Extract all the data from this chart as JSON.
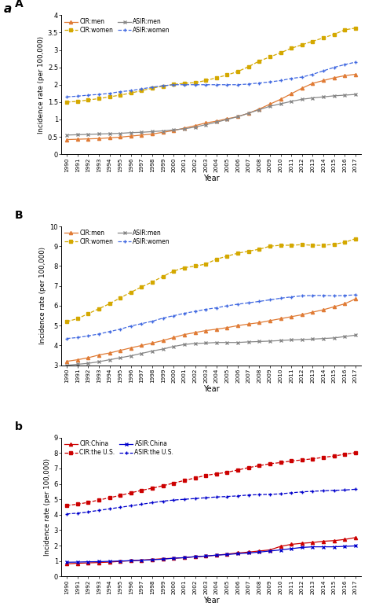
{
  "years": [
    1990,
    1991,
    1992,
    1993,
    1994,
    1995,
    1996,
    1997,
    1998,
    1999,
    2000,
    2001,
    2002,
    2003,
    2004,
    2005,
    2006,
    2007,
    2008,
    2009,
    2010,
    2011,
    2012,
    2013,
    2014,
    2015,
    2016,
    2017
  ],
  "panelA": {
    "title": "A",
    "CIR_men": [
      0.42,
      0.43,
      0.44,
      0.45,
      0.47,
      0.49,
      0.52,
      0.55,
      0.58,
      0.63,
      0.68,
      0.75,
      0.82,
      0.9,
      0.95,
      1.02,
      1.08,
      1.18,
      1.3,
      1.44,
      1.58,
      1.74,
      1.9,
      2.04,
      2.12,
      2.2,
      2.26,
      2.3
    ],
    "CIR_women": [
      1.5,
      1.52,
      1.56,
      1.6,
      1.65,
      1.7,
      1.76,
      1.83,
      1.9,
      1.96,
      2.01,
      2.04,
      2.06,
      2.12,
      2.2,
      2.28,
      2.38,
      2.52,
      2.68,
      2.8,
      2.92,
      3.05,
      3.15,
      3.25,
      3.35,
      3.45,
      3.58,
      3.63
    ],
    "ASIR_men": [
      0.55,
      0.56,
      0.57,
      0.58,
      0.59,
      0.6,
      0.62,
      0.63,
      0.65,
      0.67,
      0.7,
      0.73,
      0.78,
      0.85,
      0.92,
      1.0,
      1.08,
      1.18,
      1.28,
      1.38,
      1.45,
      1.52,
      1.58,
      1.62,
      1.65,
      1.68,
      1.7,
      1.72
    ],
    "ASIR_women": [
      1.65,
      1.67,
      1.7,
      1.72,
      1.75,
      1.8,
      1.83,
      1.88,
      1.93,
      1.97,
      2.0,
      2.0,
      2.0,
      2.0,
      2.0,
      2.0,
      2.0,
      2.02,
      2.05,
      2.08,
      2.12,
      2.18,
      2.22,
      2.3,
      2.4,
      2.5,
      2.58,
      2.65
    ],
    "ylim": [
      0,
      4
    ],
    "yticks": [
      0,
      0.5,
      1.0,
      1.5,
      2.0,
      2.5,
      3.0,
      3.5,
      4.0
    ],
    "ytick_labels": [
      "0",
      "0.5",
      "1",
      "1.5",
      "2",
      "2.5",
      "3",
      "3.5",
      "4"
    ]
  },
  "panelB": {
    "title": "B",
    "CIR_men": [
      3.2,
      3.28,
      3.38,
      3.52,
      3.62,
      3.75,
      3.88,
      4.0,
      4.12,
      4.25,
      4.4,
      4.55,
      4.65,
      4.75,
      4.82,
      4.9,
      5.0,
      5.08,
      5.15,
      5.25,
      5.35,
      5.45,
      5.55,
      5.68,
      5.8,
      5.95,
      6.1,
      6.35
    ],
    "CIR_women": [
      5.2,
      5.35,
      5.6,
      5.85,
      6.1,
      6.4,
      6.68,
      6.95,
      7.2,
      7.48,
      7.75,
      7.92,
      8.0,
      8.1,
      8.35,
      8.5,
      8.65,
      8.75,
      8.85,
      9.0,
      9.05,
      9.05,
      9.08,
      9.05,
      9.05,
      9.1,
      9.2,
      9.38
    ],
    "ASIR_men": [
      3.0,
      3.05,
      3.1,
      3.18,
      3.28,
      3.38,
      3.48,
      3.6,
      3.72,
      3.82,
      3.95,
      4.05,
      4.1,
      4.12,
      4.15,
      4.15,
      4.15,
      4.18,
      4.2,
      4.22,
      4.25,
      4.28,
      4.3,
      4.32,
      4.35,
      4.38,
      4.45,
      4.52
    ],
    "ASIR_women": [
      4.35,
      4.4,
      4.48,
      4.58,
      4.7,
      4.82,
      4.98,
      5.1,
      5.22,
      5.38,
      5.5,
      5.62,
      5.72,
      5.82,
      5.9,
      6.0,
      6.08,
      6.15,
      6.22,
      6.3,
      6.38,
      6.45,
      6.5,
      6.52,
      6.52,
      6.5,
      6.52,
      6.55
    ],
    "ylim": [
      3,
      10
    ],
    "yticks": [
      3,
      4,
      5,
      6,
      7,
      8,
      9,
      10
    ],
    "ytick_labels": [
      "3",
      "4",
      "5",
      "6",
      "7",
      "8",
      "9",
      "10"
    ]
  },
  "panelb": {
    "title": "b",
    "CIR_China": [
      0.82,
      0.85,
      0.88,
      0.9,
      0.93,
      0.98,
      1.02,
      1.06,
      1.1,
      1.15,
      1.18,
      1.22,
      1.28,
      1.32,
      1.38,
      1.45,
      1.52,
      1.58,
      1.65,
      1.72,
      1.95,
      2.08,
      2.15,
      2.2,
      2.28,
      2.32,
      2.4,
      2.52
    ],
    "CIR_US": [
      4.6,
      4.68,
      4.8,
      4.95,
      5.1,
      5.25,
      5.42,
      5.58,
      5.72,
      5.88,
      6.05,
      6.22,
      6.38,
      6.55,
      6.65,
      6.75,
      6.9,
      7.05,
      7.18,
      7.3,
      7.38,
      7.48,
      7.55,
      7.62,
      7.72,
      7.8,
      7.92,
      8.02
    ],
    "ASIR_China": [
      0.92,
      0.93,
      0.95,
      0.96,
      0.98,
      1.0,
      1.02,
      1.05,
      1.08,
      1.12,
      1.18,
      1.22,
      1.28,
      1.32,
      1.38,
      1.42,
      1.48,
      1.52,
      1.58,
      1.65,
      1.72,
      1.8,
      1.88,
      1.92,
      1.92,
      1.92,
      1.95,
      1.98
    ],
    "ASIR_US": [
      4.05,
      4.1,
      4.18,
      4.28,
      4.38,
      4.48,
      4.58,
      4.68,
      4.78,
      4.88,
      4.95,
      5.0,
      5.05,
      5.1,
      5.15,
      5.18,
      5.22,
      5.28,
      5.3,
      5.32,
      5.35,
      5.42,
      5.48,
      5.52,
      5.55,
      5.58,
      5.6,
      5.65
    ],
    "ylim": [
      0,
      9
    ],
    "yticks": [
      0,
      1,
      2,
      3,
      4,
      5,
      6,
      7,
      8,
      9
    ],
    "ytick_labels": [
      "0",
      "1",
      "2",
      "3",
      "4",
      "5",
      "6",
      "7",
      "8",
      "9"
    ]
  },
  "colors": {
    "CIR_men": "#E07B35",
    "CIR_women": "#D4A800",
    "ASIR_men": "#888888",
    "ASIR_women": "#4169E1",
    "CIR_China": "#CC0000",
    "CIR_US": "#CC0000",
    "ASIR_China": "#0000CC",
    "ASIR_US": "#0000CC"
  },
  "ylabel": "Incidence rate (per 100,000)",
  "xlabel": "Year",
  "outer_label": "a"
}
